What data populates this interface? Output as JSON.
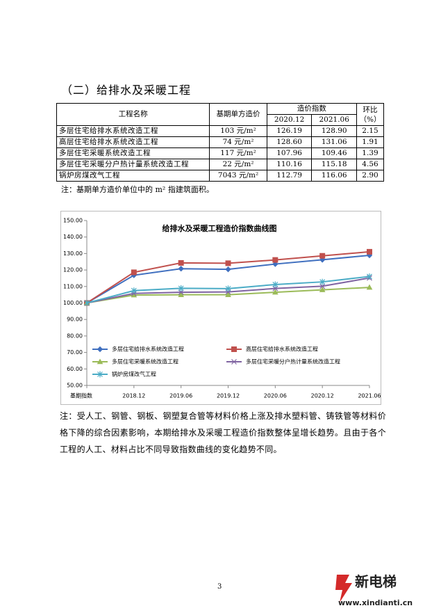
{
  "section_title": "（二）给排水及采暖工程",
  "table": {
    "header": {
      "name": "工程名称",
      "base_price": "基期单方造价",
      "index": "造价指数",
      "index_periods": [
        "2020.12",
        "2021.06"
      ],
      "mom": "环比",
      "mom_unit": "（%）"
    },
    "rows": [
      [
        "多层住宅给排水系统改造工程",
        "103 元/m²",
        "126.19",
        "128.90",
        "2.15"
      ],
      [
        "高层住宅给排水系统改造工程",
        "74 元/m²",
        "128.60",
        "131.06",
        "1.91"
      ],
      [
        "多层住宅采暖系统改造工程",
        "117 元/m²",
        "107.96",
        "109.46",
        "1.39"
      ],
      [
        "多层住宅采暖分户热计量系统改造工程",
        "22 元/m²",
        "110.16",
        "115.18",
        "4.56"
      ],
      [
        "锅炉房煤改气工程",
        "7043 元/m²",
        "112.79",
        "116.06",
        "2.90"
      ]
    ]
  },
  "table_note": "注：基期单方造价单位中的 m² 指建筑面积。",
  "chart_data": {
    "type": "line",
    "title": "给排水及采暖工程造价指数曲线图",
    "categories": [
      "基期指数",
      "2018.12",
      "2019.06",
      "2019.12",
      "2020.06",
      "2020.12",
      "2021.06"
    ],
    "ylim": [
      50,
      150
    ],
    "yticks": [
      {
        "value": 50,
        "label": "50.00"
      },
      {
        "value": 60,
        "label": "60.00"
      },
      {
        "value": 70,
        "label": "70.00"
      },
      {
        "value": 80,
        "label": "80.00"
      },
      {
        "value": 90,
        "label": "90.00"
      },
      {
        "value": 100,
        "label": "100.00"
      },
      {
        "value": 110,
        "label": "110.00"
      },
      {
        "value": 120,
        "label": "120.00"
      },
      {
        "value": 130,
        "label": "130.00"
      },
      {
        "value": 140,
        "label": "140.00"
      },
      {
        "value": 150,
        "label": "150.00"
      }
    ],
    "grid": false,
    "legend": "bottom",
    "series": [
      {
        "name": "多层住宅给排水系统改造工程",
        "color": "#3f6fbf",
        "marker": "diamond",
        "values": [
          100,
          116.8,
          120.8,
          120.4,
          123.6,
          126.19,
          128.9
        ]
      },
      {
        "name": "高层住宅给排水系统改造工程",
        "color": "#c0504d",
        "marker": "square",
        "values": [
          100,
          118.6,
          124.3,
          124.1,
          126.1,
          128.6,
          131.06
        ]
      },
      {
        "name": "多层住宅采暖系统改造工程",
        "color": "#9bbb59",
        "marker": "triangle",
        "values": [
          100,
          104.8,
          105.0,
          105.0,
          106.5,
          107.96,
          109.46
        ]
      },
      {
        "name": "多层住宅采暖分户热计量系统改造工程",
        "color": "#8064a2",
        "marker": "x",
        "values": [
          100,
          105.8,
          106.5,
          106.7,
          108.8,
          110.16,
          115.18
        ]
      },
      {
        "name": "锅炉房煤改气工程",
        "color": "#4bacc6",
        "marker": "star",
        "values": [
          100,
          107.5,
          108.9,
          108.7,
          111.2,
          112.79,
          116.06
        ]
      }
    ]
  },
  "analysis_note": "注：受人工、钢管、钢板、钢塑复合管等材料价格上涨及排水塑料管、铸铁管等材料价格下降的综合因素影响，本期给排水及采暖工程造价指数整体呈增长趋势。且由于各个工程的人工、材料占比不同导致指数曲线的变化趋势不同。",
  "page_number": "3",
  "watermark": {
    "name": "新电梯",
    "url": "www.xindianti.cn"
  }
}
